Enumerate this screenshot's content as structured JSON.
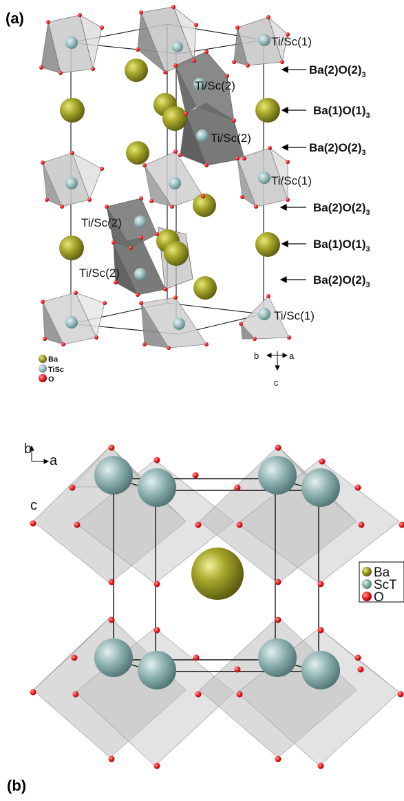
{
  "panel_a": {
    "letter": "(a)",
    "site_labels": {
      "tisc1_top": "Ti/Sc(1)",
      "tisc2_upper": "Ti/Sc(2)",
      "tisc2_upper_inner": "Ti/Sc(2)",
      "tisc1_mid": "Ti/Sc(1)",
      "tisc2_left_upper": "Ti/Sc(2)",
      "tisc2_left_lower": "Ti/Sc(2)",
      "tisc1_bottom": "Ti/Sc(1)"
    },
    "layer_labels": [
      {
        "main": "Ba(2)O(2)",
        "sub": "3"
      },
      {
        "main": "Ba(1)O(1)",
        "sub": "3"
      },
      {
        "main": "Ba(2)O(2)",
        "sub": "3"
      },
      {
        "main": "Ba(2)O(2)",
        "sub": "3"
      },
      {
        "main": "Ba(1)O(1)",
        "sub": "3"
      },
      {
        "main": "Ba(2)O(2)",
        "sub": "3"
      }
    ],
    "legend": [
      {
        "label": "Ba",
        "color": "#9a9a22"
      },
      {
        "label": "TiSc",
        "color": "#8fb4b4"
      },
      {
        "label": "O",
        "color": "#e8151b"
      }
    ],
    "axes": {
      "b": "b",
      "a": "a",
      "c": "c"
    }
  },
  "panel_b": {
    "letter": "(b)",
    "axes": {
      "b": "b",
      "a": "a",
      "c": "c"
    },
    "legend": [
      {
        "label": "Ba",
        "color": "#9a9a22"
      },
      {
        "label": "ScT",
        "color": "#8fb4b4"
      },
      {
        "label": "O",
        "color": "#e8151b"
      }
    ]
  }
}
